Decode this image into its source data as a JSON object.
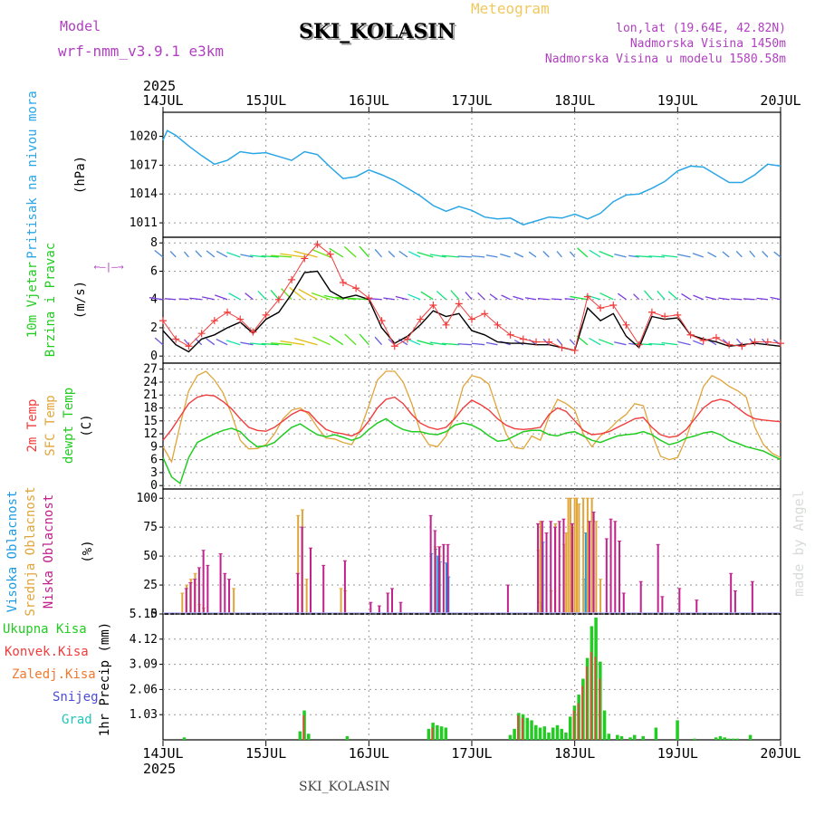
{
  "header": {
    "model_label": "Model",
    "model_value": "wrf-nmm_v3.9.1 e3km",
    "product": "Meteogram",
    "station": "SKI_KOLASIN",
    "lonlat": "lon,lat (19.64E, 42.82N)",
    "elevation": "Nadmorska Visina 1450m",
    "model_elevation": "Nadmorska Visina u modelu 1580.58m",
    "credit": "made by Angel",
    "footer_station": "SKI_KOLASIN"
  },
  "colors": {
    "pressure": "#2aa6e6",
    "temp2m": "#f03c3c",
    "sfc": "#e0a53a",
    "dewpt": "#22cc22",
    "cloud_high": "#1e9be0",
    "cloud_mid": "#e0a53a",
    "cloud_low": "#c0218c",
    "precip_total": "#22cc22",
    "precip_conv": "#f03c3c",
    "precip_frozen": "#f07a30",
    "precip_snow": "#4b4bd6",
    "precip_grad": "#22c4b8",
    "model_text": "#b040c0",
    "meteogram_text": "#f0c860"
  },
  "time_axis": {
    "year": "2025",
    "labels": [
      "14JUL",
      "15JUL",
      "16JUL",
      "17JUL",
      "18JUL",
      "19JUL",
      "20JUL"
    ],
    "range_hours": [
      0,
      144
    ]
  },
  "chart_data": [
    {
      "type": "line",
      "name": "pressure",
      "ylabel": "Pritisak na nivou mora",
      "unit": "(hPa)",
      "yticks": [
        1011,
        1014,
        1017,
        1020
      ],
      "ylim": [
        1009.5,
        1022.5
      ],
      "x": [
        0,
        1,
        3,
        6,
        9,
        12,
        15,
        18,
        21,
        24,
        27,
        30,
        33,
        36,
        39,
        42,
        45,
        48,
        51,
        54,
        57,
        60,
        63,
        66,
        69,
        72,
        75,
        78,
        81,
        84,
        87,
        90,
        93,
        96,
        99,
        102,
        105,
        108,
        111,
        114,
        117,
        120,
        123,
        126,
        129,
        132,
        135,
        138,
        141,
        144
      ],
      "values": [
        1019.6,
        1020.6,
        1020.1,
        1019.0,
        1018.0,
        1017.1,
        1017.5,
        1018.4,
        1018.2,
        1018.3,
        1017.9,
        1017.5,
        1018.4,
        1018.1,
        1016.8,
        1015.6,
        1015.8,
        1016.5,
        1016.0,
        1015.4,
        1014.6,
        1013.8,
        1012.8,
        1012.2,
        1012.7,
        1012.3,
        1011.6,
        1011.4,
        1011.5,
        1010.8,
        1011.2,
        1011.6,
        1011.5,
        1011.9,
        1011.4,
        1012.0,
        1013.2,
        1013.9,
        1014.0,
        1014.6,
        1015.3,
        1016.4,
        1016.9,
        1016.8,
        1016.0,
        1015.2,
        1015.2,
        1016.0,
        1017.1,
        1016.9
      ]
    },
    {
      "type": "line",
      "name": "wind",
      "ylabel": "10m Vjetar Brzina i Pravac",
      "unit": "(m/s)",
      "yticks": [
        0,
        2,
        4,
        6,
        8
      ],
      "ylim": [
        -0.5,
        8.4
      ],
      "legend_glyphs": "N S E W wind-rose",
      "x": [
        0,
        3,
        6,
        9,
        12,
        15,
        18,
        21,
        24,
        27,
        30,
        33,
        36,
        39,
        42,
        45,
        48,
        51,
        54,
        57,
        60,
        63,
        66,
        69,
        72,
        75,
        78,
        81,
        84,
        87,
        90,
        93,
        96,
        99,
        102,
        105,
        108,
        111,
        114,
        117,
        120,
        123,
        126,
        129,
        132,
        135,
        138,
        141,
        144
      ],
      "series": [
        {
          "name": "speed",
          "values": [
            1.8,
            0.8,
            0.3,
            1.2,
            1.5,
            2.0,
            2.4,
            1.6,
            2.6,
            3.1,
            4.4,
            5.9,
            6.0,
            4.6,
            4.1,
            4.3,
            4.0,
            2.0,
            0.9,
            1.4,
            2.2,
            3.2,
            2.8,
            3.0,
            1.8,
            1.5,
            1.0,
            0.9,
            0.9,
            0.8,
            0.8,
            0.6,
            0.4,
            3.4,
            2.5,
            3.0,
            1.4,
            0.6,
            2.8,
            2.6,
            2.7,
            1.5,
            1.2,
            1.0,
            0.7,
            0.8,
            0.9,
            0.8,
            0.7
          ]
        },
        {
          "name": "gusts",
          "values": [
            2.5,
            1.2,
            0.7,
            1.6,
            2.5,
            3.1,
            2.6,
            1.7,
            2.9,
            4.0,
            5.4,
            6.9,
            7.9,
            7.2,
            5.2,
            4.8,
            4.1,
            2.5,
            0.7,
            1.2,
            2.6,
            3.6,
            2.2,
            3.7,
            2.6,
            3.0,
            2.2,
            1.5,
            1.2,
            1.0,
            1.0,
            0.6,
            0.4,
            4.2,
            3.4,
            3.6,
            2.2,
            0.8,
            3.1,
            2.8,
            2.9,
            1.5,
            1.1,
            1.3,
            0.8,
            0.7,
            1.0,
            1.0,
            0.9
          ]
        }
      ]
    },
    {
      "type": "line",
      "name": "temperature",
      "ylabel": "2m Temp SFC Temp dewpt Temp",
      "unit": "(C)",
      "yticks": [
        0,
        3,
        6,
        9,
        12,
        15,
        18,
        21,
        24,
        27
      ],
      "ylim": [
        -0.8,
        28.4
      ],
      "x": [
        0,
        2,
        4,
        6,
        8,
        10,
        12,
        14,
        16,
        18,
        20,
        22,
        24,
        26,
        28,
        30,
        32,
        34,
        36,
        38,
        40,
        42,
        44,
        46,
        48,
        50,
        52,
        54,
        56,
        58,
        60,
        62,
        64,
        66,
        68,
        70,
        72,
        74,
        76,
        78,
        80,
        82,
        84,
        86,
        88,
        90,
        92,
        94,
        96,
        98,
        100,
        102,
        104,
        106,
        108,
        110,
        112,
        114,
        116,
        118,
        120,
        122,
        124,
        126,
        128,
        130,
        132,
        134,
        136,
        138,
        140,
        142,
        144
      ],
      "series": [
        {
          "name": "2m Temp",
          "values": [
            10.5,
            13.0,
            16.0,
            19.0,
            20.5,
            21.0,
            20.8,
            19.5,
            17.8,
            15.5,
            13.5,
            12.8,
            12.6,
            13.5,
            15.0,
            16.5,
            17.5,
            17.0,
            14.8,
            13.0,
            12.3,
            12.0,
            11.5,
            12.5,
            15.0,
            18.0,
            20.0,
            20.5,
            19.0,
            16.5,
            14.5,
            13.5,
            13.0,
            13.5,
            15.5,
            18.0,
            19.8,
            18.8,
            17.5,
            15.5,
            14.0,
            13.2,
            13.0,
            13.2,
            13.5,
            16.5,
            18.0,
            17.2,
            15.0,
            12.8,
            11.8,
            12.0,
            12.5,
            13.5,
            14.5,
            15.5,
            15.8,
            13.5,
            11.8,
            11.2,
            11.5,
            13.0,
            15.5,
            18.0,
            19.5,
            20.0,
            19.5,
            18.0,
            16.5,
            15.5,
            15.2,
            15.0,
            14.8
          ]
        },
        {
          "name": "SFC Temp",
          "values": [
            9.0,
            5.5,
            14.0,
            22.0,
            25.5,
            26.5,
            24.5,
            21.5,
            16.5,
            10.5,
            8.5,
            8.6,
            9.5,
            12.0,
            15.5,
            17.5,
            18.0,
            16.5,
            13.5,
            11.0,
            10.8,
            10.0,
            9.5,
            13.0,
            18.5,
            24.5,
            26.5,
            26.5,
            24.0,
            19.0,
            12.5,
            9.5,
            9.0,
            11.5,
            16.0,
            23.0,
            25.5,
            25.0,
            23.5,
            17.5,
            12.0,
            8.8,
            8.5,
            11.5,
            10.5,
            16.0,
            20.0,
            19.0,
            17.5,
            12.0,
            9.0,
            11.5,
            13.0,
            15.0,
            16.5,
            19.0,
            18.5,
            12.0,
            6.8,
            6.0,
            6.5,
            11.0,
            17.0,
            23.0,
            25.5,
            24.5,
            23.0,
            22.0,
            20.5,
            13.5,
            9.5,
            7.5,
            6.5
          ]
        },
        {
          "name": "dewpt Temp",
          "values": [
            6.5,
            2.0,
            0.5,
            6.5,
            10.0,
            11.0,
            12.0,
            12.8,
            13.3,
            12.5,
            10.5,
            9.0,
            9.2,
            10.0,
            11.8,
            13.5,
            14.3,
            13.0,
            11.8,
            11.3,
            11.8,
            11.2,
            10.5,
            11.2,
            13.0,
            14.5,
            15.5,
            14.0,
            13.0,
            12.5,
            12.5,
            12.0,
            11.8,
            12.5,
            14.0,
            14.5,
            14.0,
            13.0,
            11.5,
            10.3,
            10.5,
            11.5,
            12.5,
            12.8,
            12.8,
            11.8,
            11.5,
            12.2,
            12.5,
            11.5,
            10.5,
            10.0,
            10.8,
            11.5,
            11.8,
            12.0,
            12.5,
            11.8,
            10.5,
            9.5,
            10.0,
            11.0,
            11.5,
            12.2,
            12.5,
            11.8,
            10.5,
            9.8,
            9.0,
            8.5,
            8.0,
            7.0,
            6.0
          ]
        }
      ]
    },
    {
      "type": "bar",
      "name": "cloud_cover",
      "ylabel": "Visoka Oblacnost Srednja Oblacnost Niska Oblacnost",
      "unit": "(%)",
      "yticks": [
        0,
        25,
        50,
        75,
        100
      ],
      "ylim": [
        0,
        108
      ],
      "series": [
        {
          "name": "Visoka Oblacnost",
          "x": [
            63,
            64,
            64.5,
            65,
            66.5,
            67,
            88.5,
            89,
            98.5,
            99
          ],
          "values": [
            52,
            56,
            50,
            45,
            44,
            32,
            10,
            62,
            30,
            70
          ]
        },
        {
          "name": "Srednja Oblacnost",
          "x": [
            4.5,
            5.5,
            6.5,
            7.5,
            8.5,
            9.5,
            16.5,
            31.5,
            32.5,
            33.5,
            41.5,
            42.5,
            63.5,
            64.5,
            87.5,
            88,
            90.5,
            91.5,
            93.5,
            94,
            94.5,
            95,
            95.5,
            96,
            96.5,
            97,
            98,
            99,
            100,
            101,
            102
          ],
          "values": [
            18,
            25,
            30,
            35,
            8,
            5,
            22,
            85,
            90,
            30,
            22,
            20,
            58,
            58,
            55,
            80,
            20,
            78,
            60,
            70,
            100,
            100,
            75,
            100,
            100,
            95,
            100,
            100,
            100,
            80,
            30
          ]
        },
        {
          "name": "Niska Oblacnost",
          "x": [
            5,
            6,
            7,
            8,
            9,
            10,
            13,
            14,
            15,
            31,
            32,
            34,
            37,
            42,
            48,
            50,
            52,
            53,
            55,
            62,
            63,
            64,
            65,
            66,
            80,
            87,
            88,
            89,
            90,
            91,
            92,
            93,
            95,
            99,
            100,
            103,
            104,
            105,
            106,
            107,
            111,
            115,
            116,
            120,
            124,
            132,
            133,
            137
          ],
          "values": [
            22,
            27,
            30,
            40,
            55,
            42,
            52,
            35,
            30,
            35,
            75,
            57,
            42,
            46,
            10,
            7,
            18,
            22,
            10,
            85,
            72,
            58,
            60,
            60,
            25,
            78,
            80,
            70,
            80,
            75,
            80,
            82,
            78,
            80,
            88,
            65,
            82,
            80,
            63,
            18,
            28,
            60,
            15,
            22,
            12,
            35,
            20,
            28
          ]
        }
      ]
    },
    {
      "type": "bar",
      "name": "precipitation",
      "ylabel": "1hr Precip (mm)",
      "yticks": [
        1.03,
        2.06,
        3.09,
        4.12,
        5.15
      ],
      "ylim": [
        0,
        5.15
      ],
      "legend": [
        "Ukupna Kisa",
        "Konvek.Kisa",
        "Zaledj.Kisa",
        "Snijeg",
        "Grad"
      ],
      "series": [
        {
          "name": "Ukupna Kisa",
          "x": [
            5,
            32,
            33,
            34,
            43,
            62,
            63,
            64,
            65,
            66,
            81,
            82,
            83,
            84,
            85,
            86,
            87,
            88,
            89,
            90,
            91,
            92,
            93,
            94,
            95,
            96,
            97,
            98,
            99,
            100,
            101,
            102,
            103,
            104,
            106,
            107,
            109,
            110,
            112,
            115,
            120,
            124,
            129,
            130,
            131,
            132,
            133,
            134,
            137
          ],
          "values": [
            0.1,
            0.35,
            1.2,
            0.25,
            0.15,
            0.45,
            0.7,
            0.6,
            0.55,
            0.5,
            0.2,
            0.45,
            1.1,
            1.05,
            0.9,
            0.8,
            0.6,
            0.5,
            0.55,
            0.3,
            0.5,
            0.6,
            0.45,
            0.3,
            0.95,
            1.4,
            1.85,
            2.5,
            3.35,
            4.65,
            5.0,
            3.2,
            1.2,
            0.25,
            0.2,
            0.15,
            0.1,
            0.2,
            0.15,
            0.5,
            0.8,
            0.05,
            0.1,
            0.15,
            0.1,
            0.05,
            0.05,
            0.05,
            0.2
          ]
        },
        {
          "name": "Konvek.Kisa",
          "x": [
            33,
            63,
            83,
            84,
            96,
            97,
            98,
            99,
            100,
            101,
            102
          ],
          "values": [
            1.0,
            0.5,
            1.0,
            0.9,
            1.2,
            1.5,
            2.2,
            3.0,
            3.6,
            3.4,
            2.5
          ]
        }
      ]
    }
  ]
}
